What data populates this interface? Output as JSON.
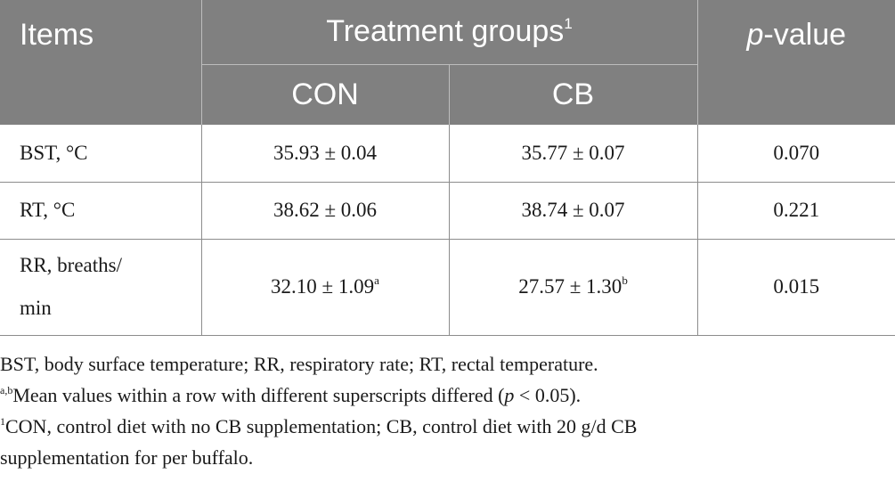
{
  "header": {
    "items": "Items",
    "treatment_groups": "Treatment groups",
    "treatment_groups_sup": "1",
    "p_italic": "p",
    "p_rest": "-value",
    "con": "CON",
    "cb": "CB"
  },
  "rows": [
    {
      "label": "BST, °C",
      "con": "35.93 ± 0.04",
      "cb": "35.77 ± 0.07",
      "p": "0.070"
    },
    {
      "label": "RT, °C",
      "con": "38.62 ± 0.06",
      "cb": "38.74 ± 0.07",
      "p": "0.221"
    },
    {
      "label_line1": "RR, breaths/",
      "label_line2": "min",
      "con": "32.10 ± 1.09",
      "con_sup": "a",
      "cb": "27.57 ± 1.30",
      "cb_sup": "b",
      "p": "0.015"
    }
  ],
  "footnotes": {
    "abbrev": "BST, body surface temperature; RR, respiratory rate; RT, rectal temperature.",
    "ab_sup": "a,b",
    "ab_text_pre": "Mean values within a row with different superscripts differed (",
    "ab_p": "p",
    "ab_text_post": " < 0.05).",
    "n1_sup": "1",
    "n1_line1": "CON, control diet with no CB supplementation; CB, control diet with 20 g/d CB",
    "n1_line2": "supplementation for per buffalo."
  }
}
